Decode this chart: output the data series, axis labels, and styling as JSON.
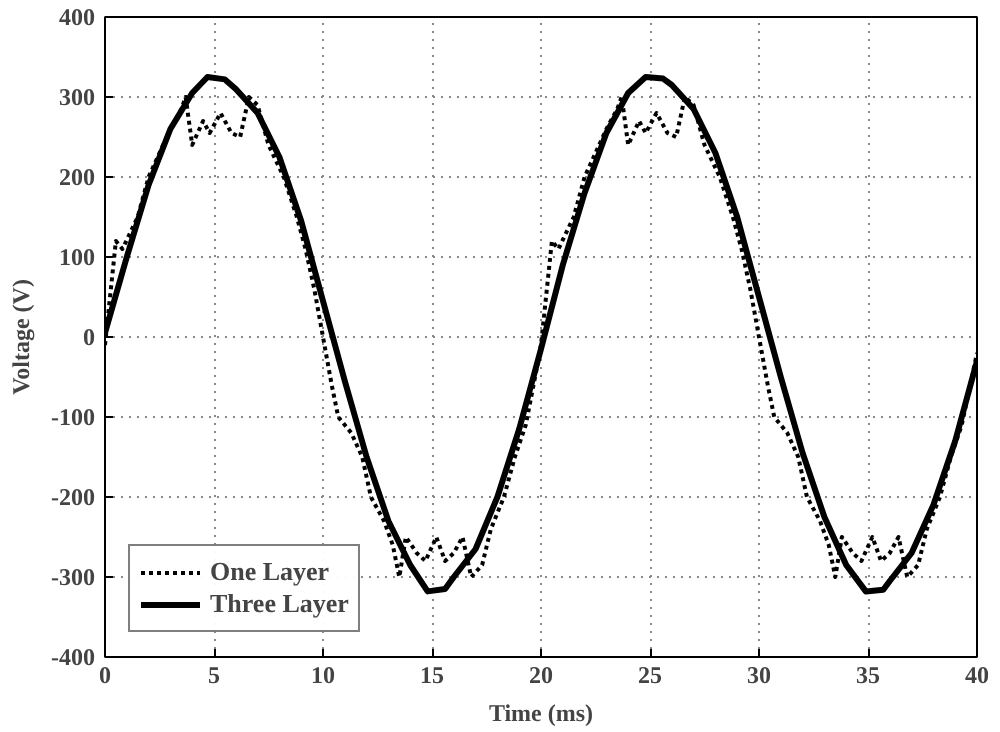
{
  "chart_data": {
    "type": "line",
    "xlabel": "Time (ms)",
    "ylabel": "Voltage (V)",
    "xlim": [
      0,
      40
    ],
    "ylim": [
      -400,
      400
    ],
    "xticks": [
      0,
      5,
      10,
      15,
      20,
      25,
      30,
      35,
      40
    ],
    "yticks": [
      -400,
      -300,
      -200,
      -100,
      0,
      100,
      200,
      300,
      400
    ],
    "grid": true,
    "legend": "bottom left",
    "marker": "none",
    "series": [
      {
        "name": "One Layer",
        "color": "#000000",
        "line_style": "dotted",
        "x": [
          0,
          0.5,
          0.8,
          1.5,
          2,
          2.5,
          3,
          3.5,
          3.7,
          4,
          4.5,
          4.8,
          5.3,
          5.8,
          6.2,
          6.6,
          7,
          7.5,
          8.2,
          8.8,
          9.2,
          9.6,
          10,
          10.4,
          10.7,
          11.3,
          11.8,
          12.2,
          12.8,
          13.2,
          13.5,
          13.8,
          14.3,
          14.7,
          15.2,
          15.6,
          16,
          16.4,
          16.8,
          17.3,
          17.7,
          18.3,
          18.8,
          19.3,
          19.8,
          20,
          20.5,
          20.8,
          21.5,
          22,
          22.5,
          23,
          23.5,
          23.7,
          24,
          24.5,
          24.8,
          25.3,
          25.8,
          26.2,
          26.6,
          27,
          27.5,
          28.2,
          28.8,
          29.2,
          29.6,
          30,
          30.4,
          30.7,
          31.3,
          31.8,
          32.2,
          32.8,
          33.2,
          33.5,
          33.8,
          34.3,
          34.7,
          35.2,
          35.6,
          36,
          36.4,
          36.8,
          37.3,
          37.7,
          38.3,
          38.8,
          39.3,
          40
        ],
        "values": [
          -10,
          120,
          110,
          150,
          200,
          230,
          260,
          285,
          300,
          240,
          270,
          255,
          280,
          255,
          250,
          300,
          290,
          240,
          200,
          150,
          110,
          60,
          0,
          -60,
          -100,
          -120,
          -150,
          -200,
          -230,
          -260,
          -300,
          -250,
          -270,
          -280,
          -250,
          -280,
          -270,
          -250,
          -300,
          -285,
          -240,
          -200,
          -150,
          -110,
          -40,
          -10,
          120,
          110,
          150,
          200,
          230,
          260,
          285,
          300,
          240,
          270,
          255,
          280,
          255,
          250,
          300,
          290,
          240,
          200,
          150,
          110,
          60,
          0,
          -60,
          -100,
          -120,
          -150,
          -200,
          -230,
          -260,
          -300,
          -250,
          -270,
          -280,
          -250,
          -280,
          -270,
          -250,
          -300,
          -285,
          -240,
          -200,
          -150,
          -110,
          -20
        ]
      },
      {
        "name": "Three Layer",
        "color": "#000000",
        "line_style": "solid",
        "x": [
          0,
          1,
          2,
          3,
          4,
          4.7,
          5.5,
          6,
          7,
          8,
          9,
          10,
          11,
          12,
          13,
          14,
          14.8,
          15.6,
          16,
          17,
          18,
          19,
          20,
          21,
          22,
          23,
          24,
          24.8,
          25.6,
          26,
          27,
          28,
          29,
          30,
          31,
          32,
          33,
          34,
          34.9,
          35.7,
          36,
          37,
          38,
          39,
          40
        ],
        "values": [
          5,
          100,
          190,
          260,
          305,
          325,
          322,
          310,
          280,
          225,
          145,
          45,
          -55,
          -150,
          -230,
          -285,
          -318,
          -315,
          -300,
          -265,
          -200,
          -115,
          -15,
          90,
          180,
          255,
          305,
          325,
          323,
          315,
          285,
          230,
          150,
          50,
          -50,
          -145,
          -225,
          -285,
          -318,
          -316,
          -305,
          -270,
          -210,
          -130,
          -30
        ]
      }
    ]
  }
}
